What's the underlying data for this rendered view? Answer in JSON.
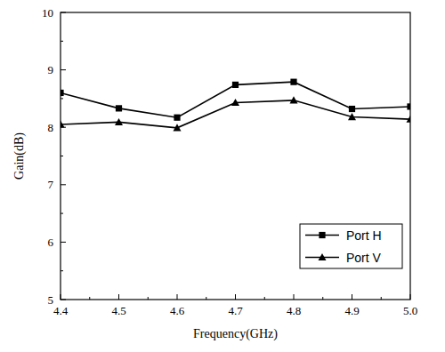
{
  "chart_data": {
    "type": "line",
    "x_label": "Frequency(GHz)",
    "y_label": "Gain(dB)",
    "x": [
      4.4,
      4.5,
      4.6,
      4.7,
      4.8,
      4.9,
      5.0
    ],
    "series": [
      {
        "name": "Port H",
        "color": "#000000",
        "marker": "square",
        "values": [
          8.6,
          8.33,
          8.17,
          8.74,
          8.79,
          8.32,
          8.36
        ]
      },
      {
        "name": "Port V",
        "color": "#000000",
        "marker": "triangle",
        "values": [
          8.05,
          8.09,
          7.99,
          8.43,
          8.47,
          8.18,
          8.14
        ]
      }
    ],
    "xlim": [
      4.4,
      5.0
    ],
    "xticks": [
      4.4,
      4.5,
      4.6,
      4.7,
      4.8,
      4.9,
      {
        "value": 5.0,
        "label": "5.0"
      }
    ],
    "ylim": [
      5,
      10
    ],
    "yticks": [
      5,
      6,
      7,
      8,
      9,
      10
    ],
    "grid": false,
    "legend": "lower right"
  }
}
